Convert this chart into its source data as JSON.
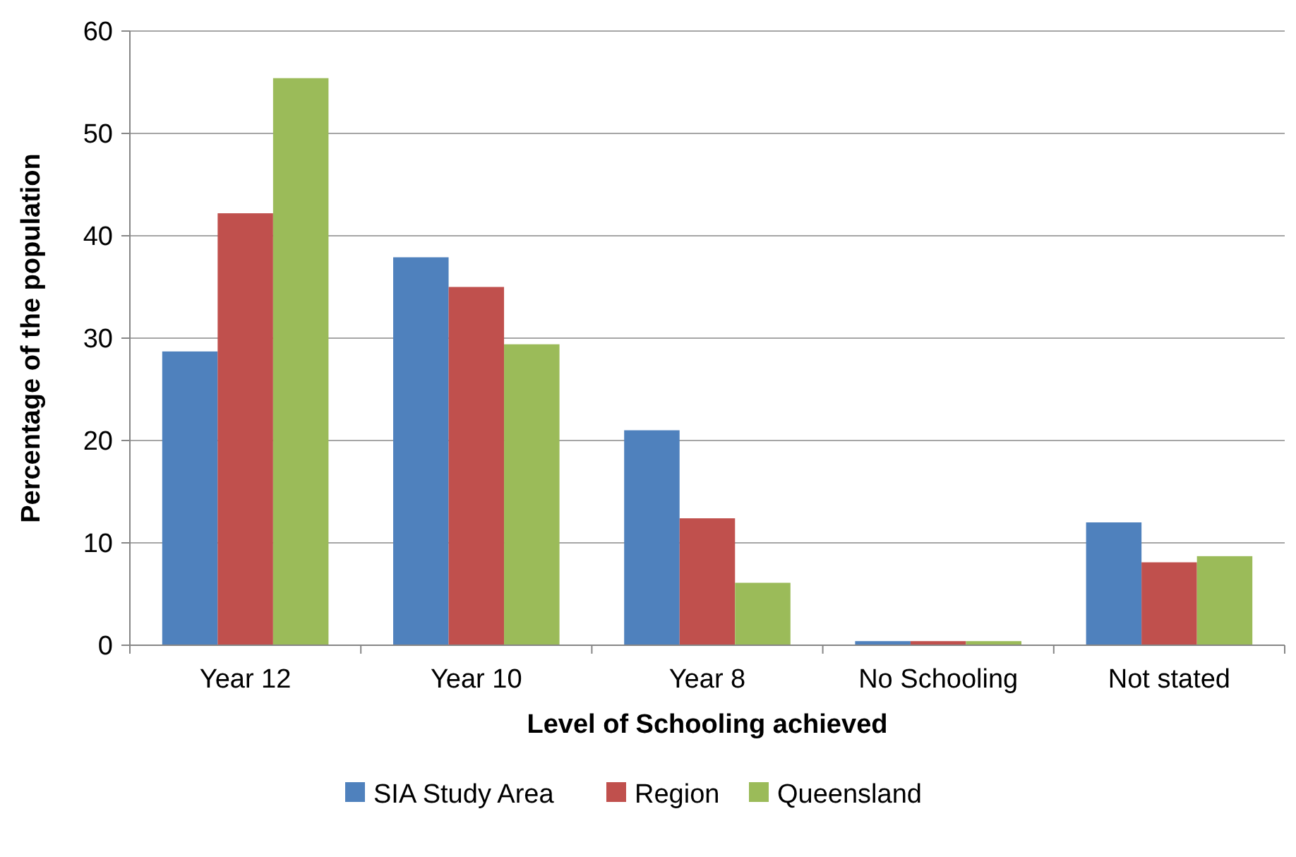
{
  "chart_data": {
    "type": "bar",
    "xlabel": "Level of Schooling achieved",
    "ylabel": "Percentage of the population",
    "categories": [
      "Year 12",
      "Year 10",
      "Year 8",
      "No Schooling",
      "Not stated"
    ],
    "series": [
      {
        "name": "SIA Study Area",
        "color": "#4f81bd",
        "values": [
          28.7,
          37.9,
          21,
          0.4,
          12
        ]
      },
      {
        "name": "Region",
        "color": "#c0504d",
        "values": [
          42.2,
          35,
          12.4,
          0.4,
          8.1
        ]
      },
      {
        "name": "Queensland",
        "color": "#9bbb59",
        "values": [
          55.4,
          29.4,
          6.1,
          0.4,
          8.7
        ]
      }
    ],
    "ylim": [
      0,
      60
    ],
    "yticks": [
      0,
      10,
      20,
      30,
      40,
      50,
      60
    ],
    "grid": "y",
    "legend": "bottom"
  }
}
